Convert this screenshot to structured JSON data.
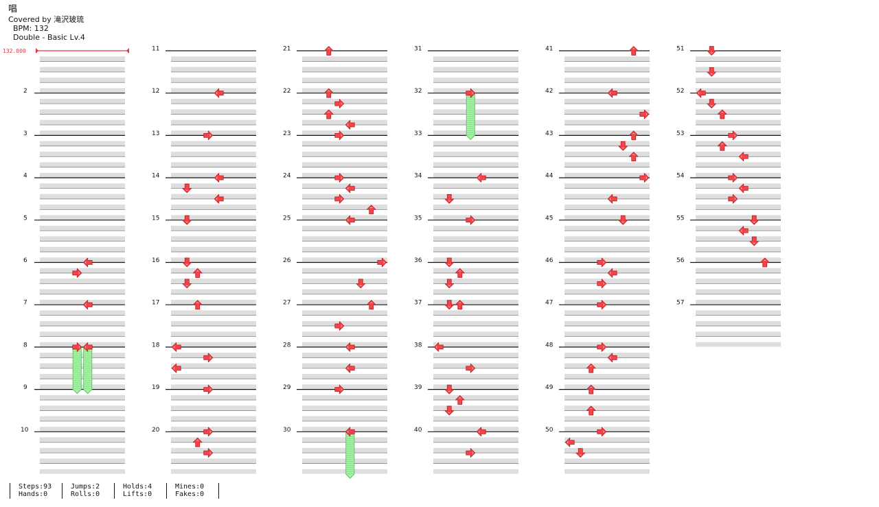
{
  "song": {
    "title": "唱",
    "artist_line": "Covered by 滝沢玻琉",
    "bpm_line": "BPM: 132",
    "difficulty_line": "Double - Basic Lv.4"
  },
  "bpm_marker": {
    "label": "132.000",
    "color": "#e8343b"
  },
  "colors": {
    "arrow": "#f0454b",
    "arrow_outline": "#b81c22",
    "hold": "#a4f3a4",
    "hold_outline": "#5fbf60",
    "row_fill": "#dedede",
    "row_line": "#8a8a8a",
    "measure_line": "#111111"
  },
  "chart_data": {
    "type": "stepchart",
    "mode": "Double",
    "lanes_per_measure": 8,
    "note_legend": "lanes 0-3 = P1 left/down/up/right, lanes 4-7 = P2 left/down/up/right; beat = quarter-beat offset within measure (0-3)",
    "measures_per_column": 10,
    "columns": 6,
    "measure_labels": [
      "",
      "2",
      "3",
      "4",
      "5",
      "6",
      "7",
      "8",
      "9",
      "10",
      "11",
      "12",
      "13",
      "14",
      "15",
      "16",
      "17",
      "18",
      "19",
      "20",
      "21",
      "22",
      "23",
      "24",
      "25",
      "26",
      "27",
      "28",
      "29",
      "30",
      "31",
      "32",
      "33",
      "34",
      "35",
      "36",
      "37",
      "38",
      "39",
      "40",
      "41",
      "42",
      "43",
      "44",
      "45",
      "46",
      "47",
      "48",
      "49",
      "50",
      "51",
      "52",
      "53",
      "54",
      "55",
      "56",
      "57"
    ],
    "notes": [
      {
        "measure": 6,
        "beat": 0,
        "lane": 4,
        "dir": "left"
      },
      {
        "measure": 6,
        "beat": 1,
        "lane": 3,
        "dir": "right"
      },
      {
        "measure": 7,
        "beat": 0,
        "lane": 4,
        "dir": "left"
      },
      {
        "measure": 8,
        "beat": 0,
        "lane": 3,
        "dir": "right",
        "hold_to": {
          "measure": 9,
          "beat": 0
        }
      },
      {
        "measure": 8,
        "beat": 0,
        "lane": 4,
        "dir": "left",
        "hold_to": {
          "measure": 9,
          "beat": 0
        }
      },
      {
        "measure": 12,
        "beat": 0,
        "lane": 4,
        "dir": "left"
      },
      {
        "measure": 13,
        "beat": 0,
        "lane": 3,
        "dir": "right"
      },
      {
        "measure": 14,
        "beat": 0,
        "lane": 4,
        "dir": "left"
      },
      {
        "measure": 14,
        "beat": 1,
        "lane": 1,
        "dir": "down"
      },
      {
        "measure": 14,
        "beat": 2,
        "lane": 4,
        "dir": "left"
      },
      {
        "measure": 15,
        "beat": 0,
        "lane": 1,
        "dir": "down"
      },
      {
        "measure": 16,
        "beat": 0,
        "lane": 1,
        "dir": "down"
      },
      {
        "measure": 16,
        "beat": 1,
        "lane": 2,
        "dir": "up"
      },
      {
        "measure": 16,
        "beat": 2,
        "lane": 1,
        "dir": "down"
      },
      {
        "measure": 17,
        "beat": 0,
        "lane": 2,
        "dir": "up"
      },
      {
        "measure": 18,
        "beat": 0,
        "lane": 0,
        "dir": "left"
      },
      {
        "measure": 18,
        "beat": 1,
        "lane": 3,
        "dir": "right"
      },
      {
        "measure": 18,
        "beat": 2,
        "lane": 0,
        "dir": "left"
      },
      {
        "measure": 19,
        "beat": 0,
        "lane": 3,
        "dir": "right"
      },
      {
        "measure": 20,
        "beat": 0,
        "lane": 3,
        "dir": "right"
      },
      {
        "measure": 20,
        "beat": 1,
        "lane": 2,
        "dir": "up"
      },
      {
        "measure": 20,
        "beat": 2,
        "lane": 3,
        "dir": "right"
      },
      {
        "measure": 21,
        "beat": 0,
        "lane": 2,
        "dir": "up"
      },
      {
        "measure": 22,
        "beat": 0,
        "lane": 2,
        "dir": "up"
      },
      {
        "measure": 22,
        "beat": 1,
        "lane": 3,
        "dir": "right"
      },
      {
        "measure": 22,
        "beat": 2,
        "lane": 2,
        "dir": "up"
      },
      {
        "measure": 22,
        "beat": 3,
        "lane": 4,
        "dir": "left"
      },
      {
        "measure": 23,
        "beat": 0,
        "lane": 3,
        "dir": "right"
      },
      {
        "measure": 24,
        "beat": 0,
        "lane": 3,
        "dir": "right"
      },
      {
        "measure": 24,
        "beat": 1,
        "lane": 4,
        "dir": "left"
      },
      {
        "measure": 24,
        "beat": 2,
        "lane": 3,
        "dir": "right"
      },
      {
        "measure": 24,
        "beat": 3,
        "lane": 6,
        "dir": "up"
      },
      {
        "measure": 25,
        "beat": 0,
        "lane": 4,
        "dir": "left"
      },
      {
        "measure": 26,
        "beat": 0,
        "lane": 7,
        "dir": "right"
      },
      {
        "measure": 26,
        "beat": 2,
        "lane": 5,
        "dir": "down"
      },
      {
        "measure": 27,
        "beat": 0,
        "lane": 6,
        "dir": "up"
      },
      {
        "measure": 27,
        "beat": 2,
        "lane": 3,
        "dir": "right"
      },
      {
        "measure": 28,
        "beat": 0,
        "lane": 4,
        "dir": "left"
      },
      {
        "measure": 28,
        "beat": 2,
        "lane": 4,
        "dir": "left"
      },
      {
        "measure": 29,
        "beat": 0,
        "lane": 3,
        "dir": "right"
      },
      {
        "measure": 30,
        "beat": 0,
        "lane": 4,
        "dir": "left",
        "hold_to": {
          "measure": 31,
          "beat": 0
        }
      },
      {
        "measure": 32,
        "beat": 0,
        "lane": 3,
        "dir": "right",
        "hold_to": {
          "measure": 33,
          "beat": 0
        }
      },
      {
        "measure": 34,
        "beat": 0,
        "lane": 4,
        "dir": "left"
      },
      {
        "measure": 34,
        "beat": 2,
        "lane": 1,
        "dir": "down"
      },
      {
        "measure": 35,
        "beat": 0,
        "lane": 3,
        "dir": "right"
      },
      {
        "measure": 36,
        "beat": 0,
        "lane": 1,
        "dir": "down"
      },
      {
        "measure": 36,
        "beat": 1,
        "lane": 2,
        "dir": "up"
      },
      {
        "measure": 36,
        "beat": 2,
        "lane": 1,
        "dir": "down"
      },
      {
        "measure": 37,
        "beat": 0,
        "lane": 1,
        "dir": "down"
      },
      {
        "measure": 37,
        "beat": 0,
        "lane": 2,
        "dir": "up"
      },
      {
        "measure": 38,
        "beat": 0,
        "lane": 0,
        "dir": "left"
      },
      {
        "measure": 38,
        "beat": 2,
        "lane": 3,
        "dir": "right"
      },
      {
        "measure": 39,
        "beat": 0,
        "lane": 1,
        "dir": "down"
      },
      {
        "measure": 39,
        "beat": 1,
        "lane": 2,
        "dir": "up"
      },
      {
        "measure": 39,
        "beat": 2,
        "lane": 1,
        "dir": "down"
      },
      {
        "measure": 40,
        "beat": 0,
        "lane": 4,
        "dir": "left"
      },
      {
        "measure": 40,
        "beat": 2,
        "lane": 3,
        "dir": "right"
      },
      {
        "measure": 41,
        "beat": 0,
        "lane": 6,
        "dir": "up"
      },
      {
        "measure": 42,
        "beat": 0,
        "lane": 4,
        "dir": "left"
      },
      {
        "measure": 42,
        "beat": 2,
        "lane": 7,
        "dir": "right"
      },
      {
        "measure": 43,
        "beat": 0,
        "lane": 6,
        "dir": "up"
      },
      {
        "measure": 43,
        "beat": 1,
        "lane": 5,
        "dir": "down"
      },
      {
        "measure": 43,
        "beat": 2,
        "lane": 6,
        "dir": "up"
      },
      {
        "measure": 44,
        "beat": 0,
        "lane": 7,
        "dir": "right"
      },
      {
        "measure": 44,
        "beat": 2,
        "lane": 4,
        "dir": "left"
      },
      {
        "measure": 45,
        "beat": 0,
        "lane": 5,
        "dir": "down"
      },
      {
        "measure": 46,
        "beat": 0,
        "lane": 3,
        "dir": "right"
      },
      {
        "measure": 46,
        "beat": 1,
        "lane": 4,
        "dir": "left"
      },
      {
        "measure": 46,
        "beat": 2,
        "lane": 3,
        "dir": "right"
      },
      {
        "measure": 47,
        "beat": 0,
        "lane": 3,
        "dir": "right"
      },
      {
        "measure": 48,
        "beat": 0,
        "lane": 3,
        "dir": "right"
      },
      {
        "measure": 48,
        "beat": 1,
        "lane": 4,
        "dir": "left"
      },
      {
        "measure": 48,
        "beat": 2,
        "lane": 2,
        "dir": "up"
      },
      {
        "measure": 49,
        "beat": 0,
        "lane": 2,
        "dir": "up"
      },
      {
        "measure": 49,
        "beat": 2,
        "lane": 2,
        "dir": "up"
      },
      {
        "measure": 50,
        "beat": 0,
        "lane": 3,
        "dir": "right"
      },
      {
        "measure": 50,
        "beat": 1,
        "lane": 0,
        "dir": "left"
      },
      {
        "measure": 50,
        "beat": 2,
        "lane": 1,
        "dir": "down"
      },
      {
        "measure": 51,
        "beat": 0,
        "lane": 1,
        "dir": "down"
      },
      {
        "measure": 51,
        "beat": 2,
        "lane": 1,
        "dir": "down"
      },
      {
        "measure": 52,
        "beat": 0,
        "lane": 0,
        "dir": "left"
      },
      {
        "measure": 52,
        "beat": 1,
        "lane": 1,
        "dir": "down"
      },
      {
        "measure": 52,
        "beat": 2,
        "lane": 2,
        "dir": "up"
      },
      {
        "measure": 53,
        "beat": 0,
        "lane": 3,
        "dir": "right"
      },
      {
        "measure": 53,
        "beat": 1,
        "lane": 2,
        "dir": "up"
      },
      {
        "measure": 53,
        "beat": 2,
        "lane": 4,
        "dir": "left"
      },
      {
        "measure": 54,
        "beat": 0,
        "lane": 3,
        "dir": "right"
      },
      {
        "measure": 54,
        "beat": 1,
        "lane": 4,
        "dir": "left"
      },
      {
        "measure": 54,
        "beat": 2,
        "lane": 3,
        "dir": "right"
      },
      {
        "measure": 55,
        "beat": 0,
        "lane": 5,
        "dir": "down"
      },
      {
        "measure": 55,
        "beat": 1,
        "lane": 4,
        "dir": "left"
      },
      {
        "measure": 55,
        "beat": 2,
        "lane": 5,
        "dir": "down"
      },
      {
        "measure": 56,
        "beat": 0,
        "lane": 6,
        "dir": "up"
      }
    ]
  },
  "stats": [
    {
      "top": "Steps:93",
      "bottom": "Hands:0"
    },
    {
      "top": "Jumps:2",
      "bottom": "Rolls:0"
    },
    {
      "top": "Holds:4",
      "bottom": "Lifts:0"
    },
    {
      "top": "Mines:0",
      "bottom": "Fakes:0"
    }
  ]
}
